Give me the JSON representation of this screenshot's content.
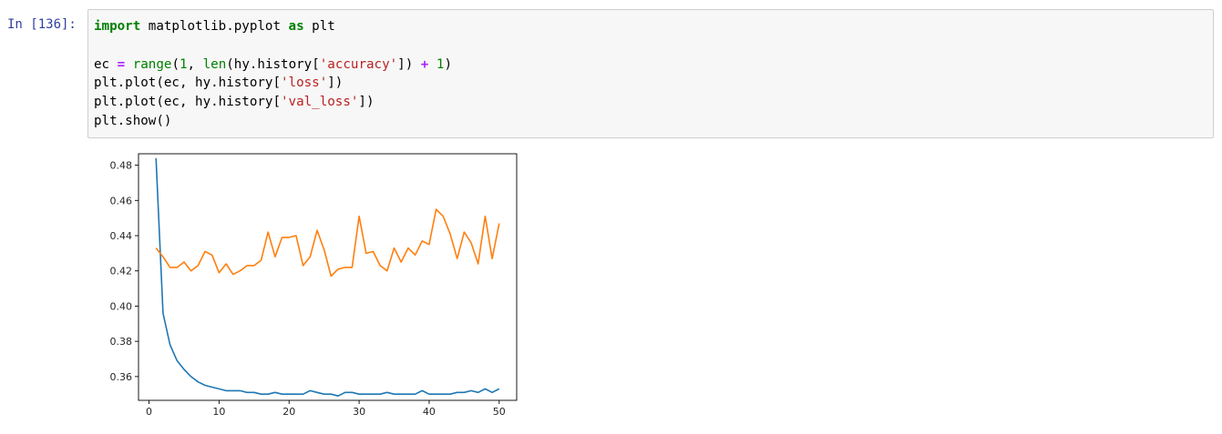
{
  "cell": {
    "prompt": "In [136]:",
    "code": {
      "line1": {
        "kw_import": "import",
        "module": " matplotlib.pyplot ",
        "kw_as": "as",
        "alias": " plt"
      },
      "line3": {
        "p1": "ec ",
        "eq": "=",
        "sp": " ",
        "fn_range": "range",
        "p2": "(",
        "n1": "1",
        "p3": ", ",
        "fn_len": "len",
        "p4": "(hy.history[",
        "s1": "'accuracy'",
        "p5": "]) ",
        "plus": "+",
        "sp2": " ",
        "n2": "1",
        "p6": ")"
      },
      "line4": {
        "p1": "plt.plot(ec, hy.history[",
        "s1": "'loss'",
        "p2": "])"
      },
      "line5": {
        "p1": "plt.plot(ec, hy.history[",
        "s1": "'val_loss'",
        "p2": "])"
      },
      "line6": {
        "p1": "plt.show()"
      }
    }
  },
  "chart_data": {
    "type": "line",
    "xlim": [
      -1.5,
      52.5
    ],
    "ylim": [
      0.3465,
      0.4865
    ],
    "x_ticks": [
      0,
      10,
      20,
      30,
      40,
      50
    ],
    "y_ticks": [
      0.36,
      0.38,
      0.4,
      0.42,
      0.44,
      0.46,
      0.48
    ],
    "y_tick_labels": [
      "0.36",
      "0.38",
      "0.40",
      "0.42",
      "0.44",
      "0.46",
      "0.48"
    ],
    "grid": false,
    "series": [
      {
        "color": "#1f77b4",
        "x": [
          1,
          2,
          3,
          4,
          5,
          6,
          7,
          8,
          9,
          10,
          11,
          12,
          13,
          14,
          15,
          16,
          17,
          18,
          19,
          20,
          21,
          22,
          23,
          24,
          25,
          26,
          27,
          28,
          29,
          30,
          31,
          32,
          33,
          34,
          35,
          36,
          37,
          38,
          39,
          40,
          41,
          42,
          43,
          44,
          45,
          46,
          47,
          48,
          49,
          50
        ],
        "y": [
          0.484,
          0.396,
          0.378,
          0.369,
          0.364,
          0.36,
          0.357,
          0.355,
          0.354,
          0.353,
          0.352,
          0.352,
          0.352,
          0.351,
          0.351,
          0.35,
          0.35,
          0.351,
          0.35,
          0.35,
          0.35,
          0.35,
          0.352,
          0.351,
          0.35,
          0.35,
          0.349,
          0.351,
          0.351,
          0.35,
          0.35,
          0.35,
          0.35,
          0.351,
          0.35,
          0.35,
          0.35,
          0.35,
          0.352,
          0.35,
          0.35,
          0.35,
          0.35,
          0.351,
          0.351,
          0.352,
          0.351,
          0.353,
          0.351,
          0.353
        ]
      },
      {
        "color": "#ff7f0e",
        "x": [
          1,
          2,
          3,
          4,
          5,
          6,
          7,
          8,
          9,
          10,
          11,
          12,
          13,
          14,
          15,
          16,
          17,
          18,
          19,
          20,
          21,
          22,
          23,
          24,
          25,
          26,
          27,
          28,
          29,
          30,
          31,
          32,
          33,
          34,
          35,
          36,
          37,
          38,
          39,
          40,
          41,
          42,
          43,
          44,
          45,
          46,
          47,
          48,
          49,
          50
        ],
        "y": [
          0.433,
          0.428,
          0.422,
          0.422,
          0.425,
          0.42,
          0.423,
          0.431,
          0.429,
          0.419,
          0.424,
          0.418,
          0.42,
          0.423,
          0.423,
          0.426,
          0.442,
          0.428,
          0.439,
          0.439,
          0.44,
          0.423,
          0.428,
          0.443,
          0.432,
          0.417,
          0.421,
          0.422,
          0.422,
          0.451,
          0.43,
          0.431,
          0.423,
          0.42,
          0.433,
          0.425,
          0.433,
          0.429,
          0.437,
          0.435,
          0.455,
          0.451,
          0.441,
          0.427,
          0.442,
          0.436,
          0.424,
          0.451,
          0.427,
          0.447
        ]
      }
    ]
  }
}
